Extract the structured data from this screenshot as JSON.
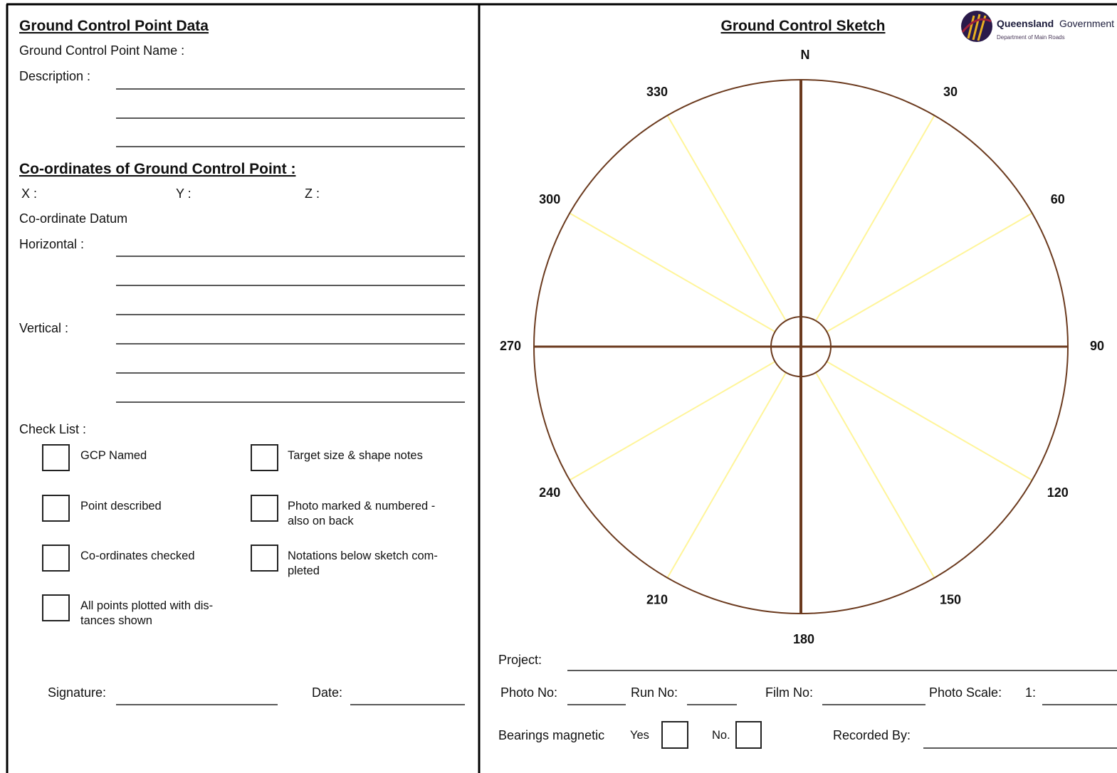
{
  "left": {
    "title": "Ground Control Point Data",
    "name_label": "Ground Control Point Name :",
    "description_label": "Description :",
    "coordinates_title": "Co-ordinates of Ground Control Point :",
    "x_label": "X :",
    "y_label": "Y :",
    "z_label": "Z :",
    "datum_label": "Co-ordinate Datum",
    "horizontal_label": "Horizontal :",
    "vertical_label": "Vertical :",
    "checklist_title": "Check List :",
    "checklist": [
      [
        "GCP Named"
      ],
      [
        "Point described"
      ],
      [
        "Co-ordinates checked"
      ],
      [
        "All points plotted with dis-",
        "tances shown"
      ],
      [
        "Target size & shape notes"
      ],
      [
        "Photo marked & numbered -",
        "also on back"
      ],
      [
        "Notations below sketch com-",
        "pleted"
      ]
    ],
    "signature_label": "Signature:",
    "date_label": "Date:"
  },
  "right": {
    "title": "Ground  Control  Sketch",
    "logo": {
      "name": "Queensland",
      "name2": "Government",
      "department": "Department of Main Roads"
    },
    "north": "N",
    "bearings": [
      "30",
      "60",
      "90",
      "120",
      "150",
      "180",
      "210",
      "240",
      "270",
      "300",
      "330"
    ],
    "project_label": "Project:",
    "photo_no_label": "Photo No:",
    "run_no_label": "Run No:",
    "film_no_label": "Film No:",
    "photo_scale_label": "Photo Scale:",
    "scale_prefix": "1:",
    "bearings_label": "Bearings magnetic",
    "yes_label": "Yes",
    "no_label": "No.",
    "recorded_by_label": "Recorded By:"
  }
}
